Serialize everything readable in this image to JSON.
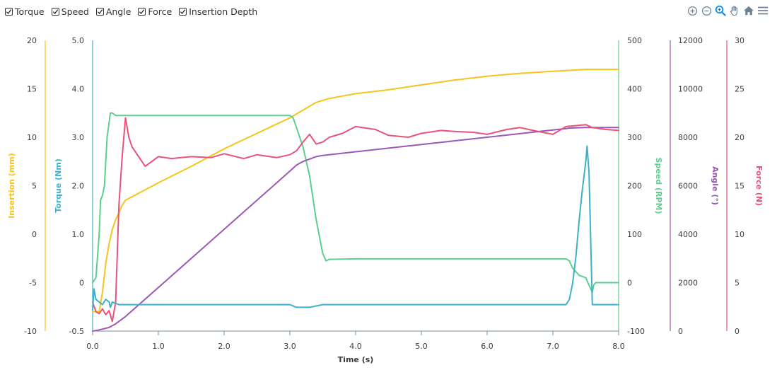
{
  "legend": [
    {
      "label": "Torque",
      "checked": true
    },
    {
      "label": "Speed",
      "checked": true
    },
    {
      "label": "Angle",
      "checked": true
    },
    {
      "label": "Force",
      "checked": true
    },
    {
      "label": "Insertion Depth",
      "checked": true
    }
  ],
  "toolbar": [
    {
      "icon": "zoom-in-icon"
    },
    {
      "icon": "zoom-out-icon"
    },
    {
      "icon": "selection-zoom-icon"
    },
    {
      "icon": "pan-hand-icon"
    },
    {
      "icon": "home-reset-icon"
    },
    {
      "icon": "menu-icon"
    }
  ],
  "chart_data": {
    "type": "line",
    "grid": false,
    "xlabel": "Time (s)",
    "xlim": [
      0,
      8
    ],
    "xticks": [
      "0.0",
      "1.0",
      "2.0",
      "3.0",
      "4.0",
      "5.0",
      "6.0",
      "7.0",
      "8.0"
    ],
    "axes": {
      "insertion": {
        "title": "Insertion (mm)",
        "range": [
          -10,
          20
        ],
        "ticks": [
          "-10",
          "-5",
          "0",
          "5",
          "10",
          "15",
          "20"
        ],
        "color": "#f5c518",
        "side": "left"
      },
      "torque": {
        "title": "Torque (Nm)",
        "range": [
          -0.5,
          5.0
        ],
        "ticks": [
          "-0.5",
          "0",
          "1.0",
          "2.0",
          "3.0",
          "4.0",
          "5.0"
        ],
        "color": "#3fb0c9",
        "side": "left"
      },
      "speed": {
        "title": "Speed (RPM)",
        "range": [
          -100,
          500
        ],
        "ticks": [
          "-100",
          "0",
          "100",
          "200",
          "300",
          "400",
          "500"
        ],
        "color": "#5ccf8f",
        "side": "right"
      },
      "angle": {
        "title": "Angle (°)",
        "range": [
          0,
          12000
        ],
        "ticks": [
          "0",
          "2000",
          "4000",
          "6000",
          "8000",
          "10000",
          "12000"
        ],
        "color": "#9b59b6",
        "side": "right"
      },
      "force": {
        "title": "Force (N)",
        "range": [
          0,
          30
        ],
        "ticks": [
          "0",
          "5",
          "10",
          "15",
          "20",
          "25",
          "30"
        ],
        "color": "#e8537a",
        "side": "right"
      }
    },
    "series": [
      {
        "name": "Insertion Depth",
        "axis": "insertion",
        "color": "#f5c518",
        "points": [
          [
            0,
            -8
          ],
          [
            0.1,
            -8
          ],
          [
            0.15,
            -6
          ],
          [
            0.2,
            -3
          ],
          [
            0.25,
            -1
          ],
          [
            0.3,
            0.5
          ],
          [
            0.35,
            1.5
          ],
          [
            0.4,
            2.2
          ],
          [
            0.45,
            3.0
          ],
          [
            0.5,
            3.5
          ],
          [
            1.0,
            5.3
          ],
          [
            1.5,
            7.0
          ],
          [
            2.0,
            8.8
          ],
          [
            2.5,
            10.4
          ],
          [
            3.0,
            12.0
          ],
          [
            3.2,
            12.8
          ],
          [
            3.4,
            13.6
          ],
          [
            3.6,
            14.0
          ],
          [
            4.0,
            14.5
          ],
          [
            4.5,
            14.9
          ],
          [
            5.0,
            15.4
          ],
          [
            5.5,
            15.9
          ],
          [
            6.0,
            16.3
          ],
          [
            6.5,
            16.6
          ],
          [
            7.0,
            16.8
          ],
          [
            7.5,
            17.0
          ],
          [
            8.0,
            17.0
          ]
        ]
      },
      {
        "name": "Speed",
        "axis": "speed",
        "color": "#5ccf8f",
        "points": [
          [
            0,
            0
          ],
          [
            0.05,
            10
          ],
          [
            0.1,
            100
          ],
          [
            0.12,
            170
          ],
          [
            0.15,
            180
          ],
          [
            0.18,
            200
          ],
          [
            0.22,
            300
          ],
          [
            0.25,
            330
          ],
          [
            0.27,
            350
          ],
          [
            0.3,
            350
          ],
          [
            0.35,
            345
          ],
          [
            0.5,
            345
          ],
          [
            1.0,
            345
          ],
          [
            2.0,
            345
          ],
          [
            2.5,
            345
          ],
          [
            3.0,
            345
          ],
          [
            3.05,
            340
          ],
          [
            3.1,
            320
          ],
          [
            3.2,
            280
          ],
          [
            3.3,
            220
          ],
          [
            3.4,
            130
          ],
          [
            3.5,
            60
          ],
          [
            3.55,
            45
          ],
          [
            3.6,
            48
          ],
          [
            4.0,
            49
          ],
          [
            5.0,
            49
          ],
          [
            6.0,
            49
          ],
          [
            7.0,
            49
          ],
          [
            7.2,
            49
          ],
          [
            7.25,
            45
          ],
          [
            7.3,
            30
          ],
          [
            7.4,
            15
          ],
          [
            7.5,
            10
          ],
          [
            7.55,
            -5
          ],
          [
            7.6,
            -20
          ],
          [
            7.62,
            -5
          ],
          [
            7.65,
            0
          ],
          [
            8.0,
            0
          ]
        ]
      },
      {
        "name": "Angle",
        "axis": "angle",
        "color": "#9b59b6",
        "points": [
          [
            0,
            0
          ],
          [
            0.1,
            50
          ],
          [
            0.25,
            150
          ],
          [
            0.35,
            300
          ],
          [
            0.5,
            600
          ],
          [
            1.0,
            1800
          ],
          [
            1.5,
            3000
          ],
          [
            2.0,
            4200
          ],
          [
            2.5,
            5400
          ],
          [
            3.0,
            6600
          ],
          [
            3.1,
            6850
          ],
          [
            3.2,
            7000
          ],
          [
            3.4,
            7200
          ],
          [
            3.5,
            7250
          ],
          [
            4.0,
            7400
          ],
          [
            4.5,
            7550
          ],
          [
            5.0,
            7700
          ],
          [
            5.5,
            7850
          ],
          [
            6.0,
            8000
          ],
          [
            6.5,
            8150
          ],
          [
            7.0,
            8300
          ],
          [
            7.2,
            8360
          ],
          [
            7.25,
            8380
          ],
          [
            7.5,
            8400
          ],
          [
            8.0,
            8400
          ]
        ]
      },
      {
        "name": "Force",
        "axis": "force",
        "color": "#e8537a",
        "points": [
          [
            0,
            3
          ],
          [
            0.05,
            2
          ],
          [
            0.1,
            1.8
          ],
          [
            0.15,
            2.3
          ],
          [
            0.2,
            1.7
          ],
          [
            0.25,
            2.1
          ],
          [
            0.3,
            1
          ],
          [
            0.35,
            3
          ],
          [
            0.4,
            13
          ],
          [
            0.45,
            18
          ],
          [
            0.5,
            22
          ],
          [
            0.55,
            20
          ],
          [
            0.6,
            19
          ],
          [
            0.7,
            18
          ],
          [
            0.8,
            17
          ],
          [
            1.0,
            18
          ],
          [
            1.2,
            17.8
          ],
          [
            1.5,
            18
          ],
          [
            1.8,
            17.9
          ],
          [
            2.0,
            18.3
          ],
          [
            2.3,
            17.8
          ],
          [
            2.5,
            18.2
          ],
          [
            2.8,
            17.9
          ],
          [
            3.0,
            18.2
          ],
          [
            3.1,
            18.6
          ],
          [
            3.2,
            19.5
          ],
          [
            3.3,
            20.3
          ],
          [
            3.4,
            19.3
          ],
          [
            3.5,
            19.5
          ],
          [
            3.6,
            20
          ],
          [
            3.8,
            20.4
          ],
          [
            4.0,
            21.1
          ],
          [
            4.3,
            20.8
          ],
          [
            4.5,
            20.2
          ],
          [
            4.8,
            20.0
          ],
          [
            5.0,
            20.4
          ],
          [
            5.3,
            20.7
          ],
          [
            5.5,
            20.6
          ],
          [
            5.8,
            20.5
          ],
          [
            6.0,
            20.3
          ],
          [
            6.3,
            20.8
          ],
          [
            6.5,
            21
          ],
          [
            6.7,
            20.7
          ],
          [
            7.0,
            20.3
          ],
          [
            7.2,
            21.1
          ],
          [
            7.5,
            21.3
          ],
          [
            7.6,
            21
          ],
          [
            7.8,
            20.8
          ],
          [
            8.0,
            20.7
          ]
        ]
      },
      {
        "name": "Torque",
        "axis": "torque",
        "color": "#3fb0c9",
        "points": [
          [
            0,
            -0.1
          ],
          [
            0.02,
            0.3
          ],
          [
            0.05,
            0.1
          ],
          [
            0.1,
            0.05
          ],
          [
            0.15,
            0.0
          ],
          [
            0.2,
            0.1
          ],
          [
            0.25,
            0.05
          ],
          [
            0.27,
            -0.05
          ],
          [
            0.3,
            0.05
          ],
          [
            0.4,
            0.0
          ],
          [
            1.0,
            0.0
          ],
          [
            2.0,
            0.0
          ],
          [
            2.5,
            0.0
          ],
          [
            3.0,
            0.0
          ],
          [
            3.1,
            -0.05
          ],
          [
            3.3,
            -0.05
          ],
          [
            3.5,
            0.0
          ],
          [
            4.0,
            0.0
          ],
          [
            5.0,
            0.0
          ],
          [
            6.0,
            0.0
          ],
          [
            7.0,
            0.0
          ],
          [
            7.2,
            0.0
          ],
          [
            7.25,
            0.1
          ],
          [
            7.3,
            0.4
          ],
          [
            7.35,
            0.9
          ],
          [
            7.4,
            1.6
          ],
          [
            7.45,
            2.2
          ],
          [
            7.5,
            2.7
          ],
          [
            7.52,
            3.0
          ],
          [
            7.55,
            2.5
          ],
          [
            7.58,
            1.0
          ],
          [
            7.6,
            0.0
          ],
          [
            8.0,
            0.0
          ]
        ]
      }
    ]
  }
}
